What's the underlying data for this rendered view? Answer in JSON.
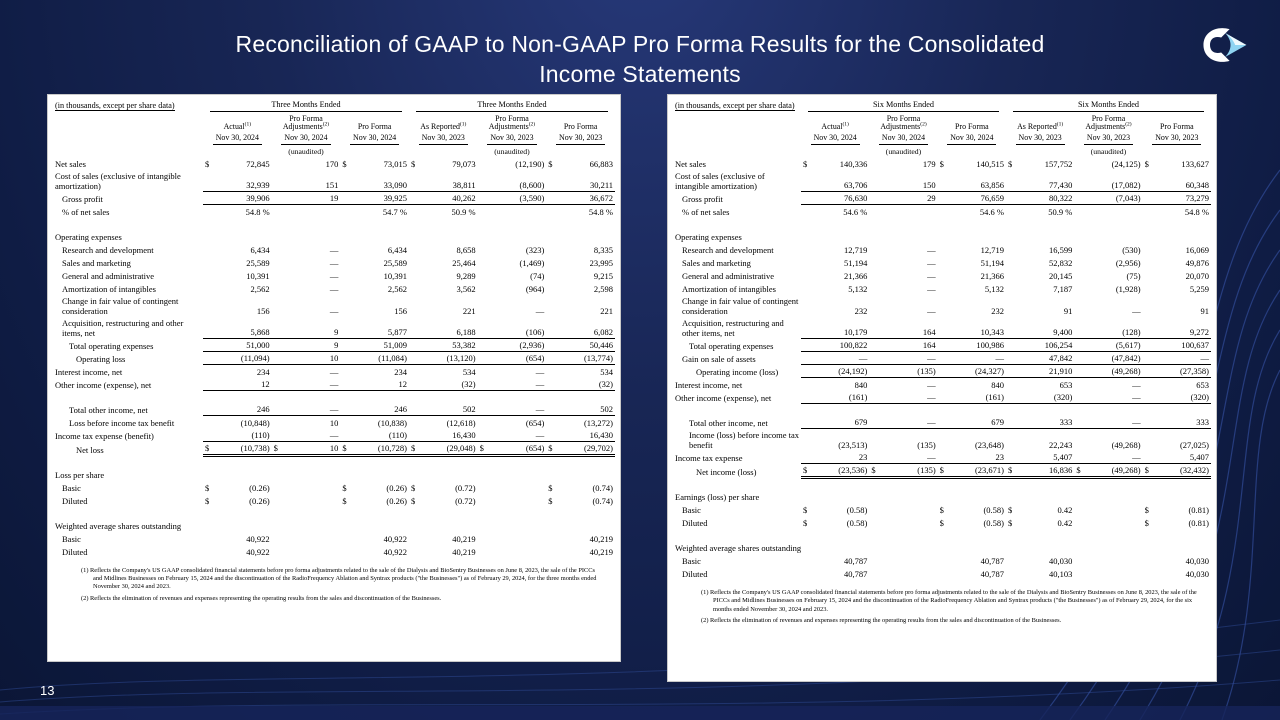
{
  "page": {
    "title_line1": "Reconciliation of GAAP to Non-GAAP Pro Forma Results for the Consolidated",
    "title_line2": "Income Statements",
    "page_number": "13"
  },
  "colors": {
    "background_navy": "#18254f",
    "accent_light_blue": "#7fd0f0",
    "table_background": "#ffffff"
  },
  "tables": [
    {
      "id": "three-months",
      "header_note": "(in thousands, except per share data)",
      "period_label": "Three Months Ended",
      "unaudited_label": "(unaudited)",
      "columns": [
        {
          "label": "Actual",
          "sup": "(1)",
          "date": "Nov 30, 2024",
          "unaudited": false
        },
        {
          "label": "Pro Forma Adjustments",
          "sup": "(2)",
          "date": "Nov 30, 2024",
          "unaudited": true
        },
        {
          "label": "Pro Forma",
          "sup": "",
          "date": "Nov 30, 2024",
          "unaudited": false
        },
        {
          "label": "As Reported",
          "sup": "(1)",
          "date": "Nov 30, 2023",
          "unaudited": false
        },
        {
          "label": "Pro Forma Adjustments",
          "sup": "(2)",
          "date": "Nov 30, 2023",
          "unaudited": true
        },
        {
          "label": "Pro Forma",
          "sup": "",
          "date": "Nov 30, 2023",
          "unaudited": false
        }
      ],
      "rows": [
        {
          "type": "data",
          "label": "Net sales",
          "indent": 0,
          "cells": [
            "$ 72,845",
            "170",
            "$ 73,015",
            "$ 79,073",
            "(12,190)",
            "$ 66,883"
          ]
        },
        {
          "type": "data",
          "label": "Cost of sales (exclusive of intangible amortization)",
          "indent": 0,
          "ul": true,
          "cells": [
            "32,939",
            "151",
            "33,090",
            "38,811",
            "(8,600)",
            "30,211"
          ]
        },
        {
          "type": "data",
          "label": "Gross profit",
          "indent": 1,
          "ul": true,
          "cells": [
            "39,906",
            "19",
            "39,925",
            "40,262",
            "(3,590)",
            "36,672"
          ]
        },
        {
          "type": "data",
          "label": "% of net sales",
          "indent": 1,
          "cells": [
            "54.8 %",
            "",
            "54.7 %",
            "50.9 %",
            "",
            "54.8 %"
          ]
        },
        {
          "type": "spacer"
        },
        {
          "type": "section",
          "label": "Operating expenses"
        },
        {
          "type": "data",
          "label": "Research and development",
          "indent": 1,
          "cells": [
            "6,434",
            "—",
            "6,434",
            "8,658",
            "(323)",
            "8,335"
          ]
        },
        {
          "type": "data",
          "label": "Sales and marketing",
          "indent": 1,
          "cells": [
            "25,589",
            "—",
            "25,589",
            "25,464",
            "(1,469)",
            "23,995"
          ]
        },
        {
          "type": "data",
          "label": "General and administrative",
          "indent": 1,
          "cells": [
            "10,391",
            "—",
            "10,391",
            "9,289",
            "(74)",
            "9,215"
          ]
        },
        {
          "type": "data",
          "label": "Amortization of intangibles",
          "indent": 1,
          "cells": [
            "2,562",
            "—",
            "2,562",
            "3,562",
            "(964)",
            "2,598"
          ]
        },
        {
          "type": "data",
          "label": "Change in fair value of contingent consideration",
          "indent": 1,
          "cells": [
            "156",
            "—",
            "156",
            "221",
            "—",
            "221"
          ]
        },
        {
          "type": "data",
          "label": "Acquisition, restructuring and other items, net",
          "indent": 1,
          "ul": true,
          "cells": [
            "5,868",
            "9",
            "5,877",
            "6,188",
            "(106)",
            "6,082"
          ]
        },
        {
          "type": "data",
          "label": "Total operating expenses",
          "indent": 2,
          "ul": true,
          "cells": [
            "51,000",
            "9",
            "51,009",
            "53,382",
            "(2,936)",
            "50,446"
          ]
        },
        {
          "type": "data",
          "label": "Operating loss",
          "indent": 3,
          "ul": true,
          "cells": [
            "(11,094)",
            "10",
            "(11,084)",
            "(13,120)",
            "(654)",
            "(13,774)"
          ]
        },
        {
          "type": "data",
          "label": "Interest income, net",
          "indent": 0,
          "cells": [
            "234",
            "—",
            "234",
            "534",
            "—",
            "534"
          ]
        },
        {
          "type": "data",
          "label": "Other income (expense), net",
          "indent": 0,
          "ul": true,
          "cells": [
            "12",
            "—",
            "12",
            "(32)",
            "—",
            "(32)"
          ]
        },
        {
          "type": "spacer"
        },
        {
          "type": "data",
          "label": "Total other income, net",
          "indent": 2,
          "ul": true,
          "cells": [
            "246",
            "—",
            "246",
            "502",
            "—",
            "502"
          ]
        },
        {
          "type": "data",
          "label": "Loss before income tax benefit",
          "indent": 2,
          "cells": [
            "(10,848)",
            "10",
            "(10,838)",
            "(12,618)",
            "(654)",
            "(13,272)"
          ]
        },
        {
          "type": "data",
          "label": "Income tax expense (benefit)",
          "indent": 0,
          "ul": true,
          "cells": [
            "(110)",
            "—",
            "(110)",
            "16,430",
            "—",
            "16,430"
          ]
        },
        {
          "type": "data",
          "label": "Net loss",
          "indent": 3,
          "dul": true,
          "cells": [
            "$ (10,738)",
            "$ 10",
            "$ (10,728)",
            "$ (29,048)",
            "$ (654)",
            "$ (29,702)"
          ]
        },
        {
          "type": "spacer"
        },
        {
          "type": "section",
          "label": "Loss per share"
        },
        {
          "type": "data",
          "label": "Basic",
          "indent": 1,
          "cells": [
            "$ (0.26)",
            "",
            "$ (0.26)",
            "$ (0.72)",
            "",
            "$ (0.74)"
          ]
        },
        {
          "type": "data",
          "label": "Diluted",
          "indent": 1,
          "cells": [
            "$ (0.26)",
            "",
            "$ (0.26)",
            "$ (0.72)",
            "",
            "$ (0.74)"
          ]
        },
        {
          "type": "spacer"
        },
        {
          "type": "section",
          "label": "Weighted average shares outstanding"
        },
        {
          "type": "data",
          "label": "Basic",
          "indent": 1,
          "cells": [
            "40,922",
            "",
            "40,922",
            "40,219",
            "",
            "40,219"
          ]
        },
        {
          "type": "data",
          "label": "Diluted",
          "indent": 1,
          "cells": [
            "40,922",
            "",
            "40,922",
            "40,219",
            "",
            "40,219"
          ]
        }
      ],
      "footnotes": [
        "(1)  Reflects the Company's US GAAP consolidated financial statements before pro forma adjustments related to the sale of the Dialysis and BioSentry Businesses on June 8, 2023, the sale of the PICCs and Midlines Businesses on February 15, 2024 and the discontinuation of the RadioFrequency Ablation and Syntrax products (\"the Businesses\") as of February 29, 2024, for the three months ended November 30, 2024 and 2023.",
        "(2)  Reflects the elimination of revenues and expenses representing the operating results from the sales and discontinuation of the Businesses."
      ]
    },
    {
      "id": "six-months",
      "header_note": "(in thousands, except per share data)",
      "period_label": "Six Months Ended",
      "unaudited_label": "(unaudited)",
      "columns": [
        {
          "label": "Actual",
          "sup": "(1)",
          "date": "Nov 30, 2024",
          "unaudited": false
        },
        {
          "label": "Pro Forma Adjustments",
          "sup": "(2)",
          "date": "Nov 30, 2024",
          "unaudited": true
        },
        {
          "label": "Pro Forma",
          "sup": "",
          "date": "Nov 30, 2024",
          "unaudited": false
        },
        {
          "label": "As Reported",
          "sup": "(1)",
          "date": "Nov 30, 2023",
          "unaudited": false
        },
        {
          "label": "Pro Forma Adjustments",
          "sup": "(2)",
          "date": "Nov 30, 2023",
          "unaudited": true
        },
        {
          "label": "Pro Forma",
          "sup": "",
          "date": "Nov 30, 2023",
          "unaudited": false
        }
      ],
      "rows": [
        {
          "type": "data",
          "label": "Net sales",
          "indent": 0,
          "cells": [
            "$ 140,336",
            "179",
            "$ 140,515",
            "$ 157,752",
            "(24,125)",
            "$ 133,627"
          ]
        },
        {
          "type": "data",
          "label": "Cost of sales (exclusive of intangible amortization)",
          "indent": 0,
          "ul": true,
          "cells": [
            "63,706",
            "150",
            "63,856",
            "77,430",
            "(17,082)",
            "60,348"
          ]
        },
        {
          "type": "data",
          "label": "Gross profit",
          "indent": 1,
          "ul": true,
          "cells": [
            "76,630",
            "29",
            "76,659",
            "80,322",
            "(7,043)",
            "73,279"
          ]
        },
        {
          "type": "data",
          "label": "% of net sales",
          "indent": 1,
          "cells": [
            "54.6 %",
            "",
            "54.6 %",
            "50.9 %",
            "",
            "54.8 %"
          ]
        },
        {
          "type": "spacer"
        },
        {
          "type": "section",
          "label": "Operating expenses"
        },
        {
          "type": "data",
          "label": "Research and development",
          "indent": 1,
          "cells": [
            "12,719",
            "—",
            "12,719",
            "16,599",
            "(530)",
            "16,069"
          ]
        },
        {
          "type": "data",
          "label": "Sales and marketing",
          "indent": 1,
          "cells": [
            "51,194",
            "—",
            "51,194",
            "52,832",
            "(2,956)",
            "49,876"
          ]
        },
        {
          "type": "data",
          "label": "General and administrative",
          "indent": 1,
          "cells": [
            "21,366",
            "—",
            "21,366",
            "20,145",
            "(75)",
            "20,070"
          ]
        },
        {
          "type": "data",
          "label": "Amortization of intangibles",
          "indent": 1,
          "cells": [
            "5,132",
            "—",
            "5,132",
            "7,187",
            "(1,928)",
            "5,259"
          ]
        },
        {
          "type": "data",
          "label": "Change in fair value of contingent consideration",
          "indent": 1,
          "cells": [
            "232",
            "—",
            "232",
            "91",
            "—",
            "91"
          ]
        },
        {
          "type": "data",
          "label": "Acquisition, restructuring and other items, net",
          "indent": 1,
          "ul": true,
          "cells": [
            "10,179",
            "164",
            "10,343",
            "9,400",
            "(128)",
            "9,272"
          ]
        },
        {
          "type": "data",
          "label": "Total operating expenses",
          "indent": 2,
          "ul": true,
          "cells": [
            "100,822",
            "164",
            "100,986",
            "106,254",
            "(5,617)",
            "100,637"
          ]
        },
        {
          "type": "data",
          "label": "Gain on sale of assets",
          "indent": 1,
          "ul": true,
          "cells": [
            "—",
            "—",
            "—",
            "47,842",
            "(47,842)",
            "—"
          ]
        },
        {
          "type": "data",
          "label": "Operating income (loss)",
          "indent": 3,
          "ul": true,
          "cells": [
            "(24,192)",
            "(135)",
            "(24,327)",
            "21,910",
            "(49,268)",
            "(27,358)"
          ]
        },
        {
          "type": "data",
          "label": "Interest income, net",
          "indent": 0,
          "cells": [
            "840",
            "—",
            "840",
            "653",
            "—",
            "653"
          ]
        },
        {
          "type": "data",
          "label": "Other income (expense), net",
          "indent": 0,
          "ul": true,
          "cells": [
            "(161)",
            "—",
            "(161)",
            "(320)",
            "—",
            "(320)"
          ]
        },
        {
          "type": "spacer"
        },
        {
          "type": "data",
          "label": "Total other income, net",
          "indent": 2,
          "ul": true,
          "cells": [
            "679",
            "—",
            "679",
            "333",
            "—",
            "333"
          ]
        },
        {
          "type": "data",
          "label": "Income (loss) before income tax benefit",
          "indent": 2,
          "cells": [
            "(23,513)",
            "(135)",
            "(23,648)",
            "22,243",
            "(49,268)",
            "(27,025)"
          ]
        },
        {
          "type": "data",
          "label": "Income tax expense",
          "indent": 0,
          "ul": true,
          "cells": [
            "23",
            "—",
            "23",
            "5,407",
            "—",
            "5,407"
          ]
        },
        {
          "type": "data",
          "label": "Net income (loss)",
          "indent": 3,
          "dul": true,
          "cells": [
            "$ (23,536)",
            "$ (135)",
            "$ (23,671)",
            "$ 16,836",
            "$ (49,268)",
            "$ (32,432)"
          ]
        },
        {
          "type": "spacer"
        },
        {
          "type": "section",
          "label": "Earnings (loss) per share"
        },
        {
          "type": "data",
          "label": "Basic",
          "indent": 1,
          "cells": [
            "$ (0.58)",
            "",
            "$ (0.58)",
            "$ 0.42",
            "",
            "$ (0.81)"
          ]
        },
        {
          "type": "data",
          "label": "Diluted",
          "indent": 1,
          "cells": [
            "$ (0.58)",
            "",
            "$ (0.58)",
            "$ 0.42",
            "",
            "$ (0.81)"
          ]
        },
        {
          "type": "spacer"
        },
        {
          "type": "section",
          "label": "Weighted average shares outstanding"
        },
        {
          "type": "data",
          "label": "Basic",
          "indent": 1,
          "cells": [
            "40,787",
            "",
            "40,787",
            "40,030",
            "",
            "40,030"
          ]
        },
        {
          "type": "data",
          "label": "Diluted",
          "indent": 1,
          "cells": [
            "40,787",
            "",
            "40,787",
            "40,103",
            "",
            "40,030"
          ]
        }
      ],
      "footnotes": [
        "(1)  Reflects the Company's US GAAP consolidated financial statements before pro forma adjustments related to the sale of the Dialysis and BioSentry Businesses on June 8, 2023, the sale of the PICCs and Midlines Businesses on February 15, 2024 and the discontinuation of the RadioFrequency Ablation and Syntrax products (\"the Businesses\") as of February 29, 2024, for the six months ended November 30, 2024 and 2023.",
        "(2)  Reflects the elimination of revenues and expenses representing the operating results from the sales and discontinuation of the Businesses."
      ]
    }
  ]
}
